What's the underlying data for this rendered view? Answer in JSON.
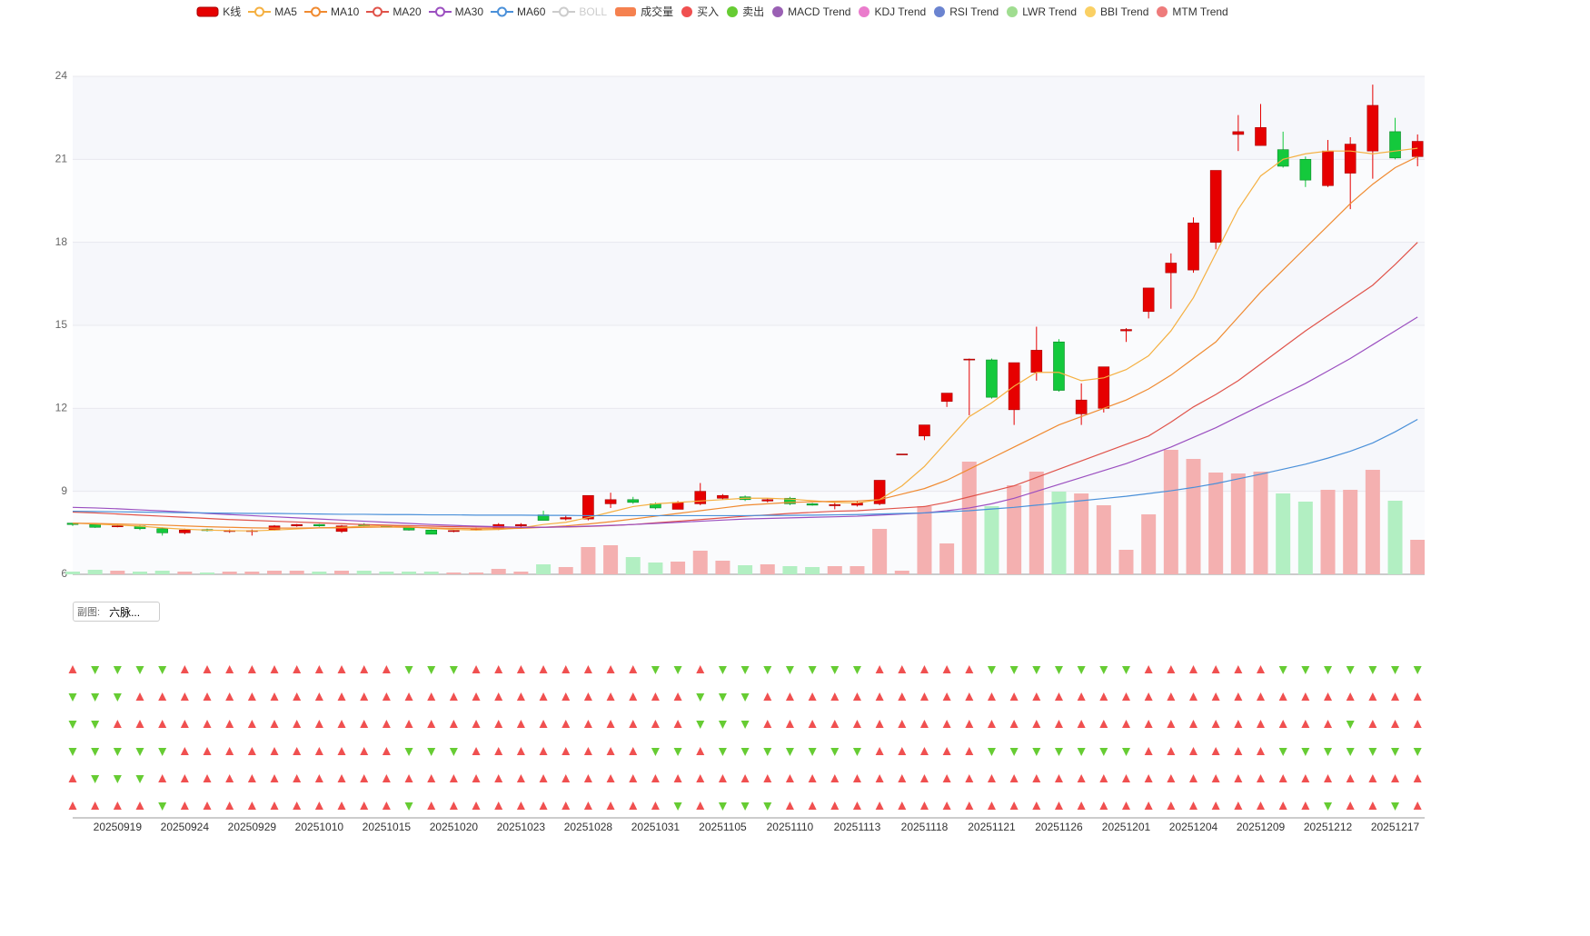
{
  "chart_data": {
    "type": "candlestick",
    "candle_name": "K线",
    "up_color": "#e60000",
    "up_border": "#a80000",
    "down_color": "#14c93c",
    "down_border": "#0a8a28",
    "categories": [
      null,
      null,
      "20250919",
      null,
      null,
      "20250924",
      null,
      null,
      "20250929",
      null,
      null,
      "20251010",
      null,
      null,
      "20251015",
      null,
      null,
      "20251020",
      null,
      null,
      "20251023",
      null,
      null,
      "20251028",
      null,
      null,
      "20251031",
      null,
      null,
      "20251105",
      null,
      null,
      "20251110",
      null,
      null,
      "20251113",
      null,
      null,
      "20251118",
      null,
      null,
      "20251121",
      null,
      null,
      "20251126",
      null,
      null,
      "20251201",
      null,
      null,
      "20251204",
      null,
      null,
      "20251209",
      null,
      null,
      "20251212",
      null,
      null,
      "20251217",
      null
    ],
    "ohlc": [
      [
        7.85,
        7.8,
        7.75,
        7.85
      ],
      [
        7.8,
        7.7,
        7.68,
        7.82
      ],
      [
        7.72,
        7.75,
        7.7,
        7.8
      ],
      [
        7.75,
        7.65,
        7.6,
        7.78
      ],
      [
        7.65,
        7.5,
        7.4,
        7.7
      ],
      [
        7.5,
        7.6,
        7.45,
        7.65
      ],
      [
        7.62,
        7.58,
        7.55,
        7.65
      ],
      [
        7.55,
        7.58,
        7.5,
        7.62
      ],
      [
        7.55,
        7.58,
        7.4,
        7.62
      ],
      [
        7.6,
        7.75,
        7.58,
        7.78
      ],
      [
        7.75,
        7.8,
        7.72,
        7.82
      ],
      [
        7.8,
        7.75,
        7.72,
        7.82
      ],
      [
        7.55,
        7.75,
        7.5,
        7.78
      ],
      [
        7.8,
        7.75,
        7.7,
        7.85
      ],
      [
        7.75,
        7.72,
        7.7,
        7.78
      ],
      [
        7.7,
        7.6,
        7.58,
        7.72
      ],
      [
        7.6,
        7.45,
        7.45,
        7.62
      ],
      [
        7.55,
        7.58,
        7.52,
        7.6
      ],
      [
        7.6,
        7.65,
        7.58,
        7.68
      ],
      [
        7.65,
        7.8,
        7.6,
        7.85
      ],
      [
        7.75,
        7.8,
        7.7,
        7.85
      ],
      [
        8.15,
        7.95,
        7.95,
        8.3
      ],
      [
        8.0,
        8.05,
        7.95,
        8.15
      ],
      [
        8.0,
        8.85,
        7.95,
        8.85
      ],
      [
        8.55,
        8.7,
        8.4,
        8.95
      ],
      [
        8.7,
        8.6,
        8.55,
        8.8
      ],
      [
        8.55,
        8.4,
        8.35,
        8.6
      ],
      [
        8.35,
        8.6,
        8.35,
        8.65
      ],
      [
        8.55,
        9.0,
        8.5,
        9.3
      ],
      [
        8.75,
        8.85,
        8.7,
        8.9
      ],
      [
        8.8,
        8.7,
        8.65,
        8.85
      ],
      [
        8.65,
        8.7,
        8.6,
        8.75
      ],
      [
        8.75,
        8.55,
        8.5,
        8.8
      ],
      [
        8.55,
        8.5,
        8.48,
        8.58
      ],
      [
        8.48,
        8.52,
        8.35,
        8.6
      ],
      [
        8.5,
        8.58,
        8.45,
        8.65
      ],
      [
        8.55,
        9.4,
        8.5,
        9.4
      ],
      [
        10.35,
        10.35,
        10.35,
        10.35
      ],
      [
        11.0,
        11.4,
        10.85,
        11.4
      ],
      [
        12.25,
        12.55,
        12.05,
        12.55
      ],
      [
        13.75,
        13.78,
        11.75,
        13.8
      ],
      [
        13.75,
        12.4,
        12.35,
        13.8
      ],
      [
        11.95,
        13.65,
        11.4,
        13.65
      ],
      [
        13.3,
        14.1,
        13.0,
        14.95
      ],
      [
        14.4,
        12.65,
        12.6,
        14.5
      ],
      [
        11.8,
        12.3,
        11.4,
        12.9
      ],
      [
        12.0,
        13.5,
        11.85,
        13.5
      ],
      [
        14.8,
        14.85,
        14.4,
        14.9
      ],
      [
        15.5,
        16.35,
        15.25,
        16.35
      ],
      [
        16.9,
        17.25,
        15.6,
        17.6
      ],
      [
        17.0,
        18.7,
        16.9,
        18.9
      ],
      [
        18.0,
        20.6,
        17.75,
        20.6
      ],
      [
        21.9,
        22.0,
        21.3,
        22.6
      ],
      [
        21.5,
        22.15,
        21.5,
        23.0
      ],
      [
        21.35,
        20.75,
        20.7,
        22.0
      ],
      [
        21.0,
        20.25,
        20.0,
        21.1
      ],
      [
        20.05,
        21.3,
        20.0,
        21.7
      ],
      [
        20.5,
        21.55,
        19.2,
        21.8
      ],
      [
        21.3,
        22.95,
        20.3,
        23.7
      ],
      [
        22.0,
        21.05,
        21.0,
        22.5
      ],
      [
        21.1,
        21.65,
        20.75,
        21.9
      ]
    ],
    "volume_name": "成交量",
    "volume_color": "#f5814f",
    "volume_up_color": "#f4b0b0",
    "volume_down_color": "#b2efc2",
    "volume": [
      3,
      5,
      4,
      3,
      4,
      3,
      2,
      3,
      3,
      4,
      4,
      3,
      4,
      4,
      3,
      3,
      3,
      2,
      2,
      6,
      3,
      11,
      8,
      30,
      32,
      19,
      13,
      14,
      26,
      15,
      10,
      11,
      9,
      8,
      9,
      9,
      50,
      4,
      75,
      34,
      124,
      75,
      98,
      113,
      91,
      89,
      76,
      27,
      66,
      137,
      127,
      112,
      111,
      113,
      89,
      80,
      93,
      93,
      115,
      81,
      38
    ],
    "series": [
      {
        "name": "MA5",
        "color": "#f5b041",
        "values": [
          7.85,
          7.82,
          7.78,
          7.74,
          7.68,
          7.63,
          7.6,
          7.58,
          7.57,
          7.6,
          7.64,
          7.68,
          7.7,
          7.74,
          7.76,
          7.72,
          7.66,
          7.62,
          7.6,
          7.62,
          7.68,
          7.8,
          7.88,
          8.05,
          8.25,
          8.45,
          8.55,
          8.6,
          8.65,
          8.7,
          8.75,
          8.75,
          8.72,
          8.66,
          8.6,
          8.58,
          8.7,
          9.2,
          9.9,
          10.8,
          11.7,
          12.2,
          12.8,
          13.3,
          13.3,
          13.0,
          13.1,
          13.4,
          13.9,
          14.8,
          16.0,
          17.6,
          19.2,
          20.4,
          21.0,
          21.2,
          21.3,
          21.3,
          21.2,
          21.3,
          21.4
        ]
      },
      {
        "name": "MA10",
        "color": "#f08a30",
        "values": [
          7.85,
          7.84,
          7.82,
          7.8,
          7.78,
          7.75,
          7.72,
          7.7,
          7.68,
          7.67,
          7.67,
          7.68,
          7.68,
          7.7,
          7.71,
          7.7,
          7.68,
          7.66,
          7.65,
          7.65,
          7.66,
          7.7,
          7.75,
          7.82,
          7.9,
          8.0,
          8.1,
          8.2,
          8.3,
          8.4,
          8.5,
          8.55,
          8.6,
          8.62,
          8.64,
          8.65,
          8.7,
          8.9,
          9.1,
          9.4,
          9.8,
          10.2,
          10.6,
          11.0,
          11.4,
          11.7,
          12.0,
          12.3,
          12.7,
          13.2,
          13.8,
          14.4,
          15.3,
          16.2,
          17.0,
          17.8,
          18.6,
          19.4,
          20.1,
          20.7,
          21.1
        ]
      },
      {
        "name": "MA20",
        "color": "#e0534a",
        "values": [
          8.25,
          8.22,
          8.18,
          8.14,
          8.1,
          8.06,
          8.02,
          7.98,
          7.95,
          7.92,
          7.89,
          7.86,
          7.83,
          7.8,
          7.78,
          7.76,
          7.74,
          7.72,
          7.71,
          7.7,
          7.7,
          7.7,
          7.71,
          7.73,
          7.76,
          7.8,
          7.86,
          7.92,
          7.98,
          8.04,
          8.1,
          8.15,
          8.2,
          8.24,
          8.28,
          8.3,
          8.35,
          8.4,
          8.45,
          8.6,
          8.8,
          9.0,
          9.2,
          9.5,
          9.8,
          10.1,
          10.4,
          10.7,
          11.0,
          11.5,
          12.05,
          12.5,
          13.0,
          13.6,
          14.2,
          14.8,
          15.35,
          15.9,
          16.45,
          17.2,
          18.0
        ]
      },
      {
        "name": "MA30",
        "color": "#9b4fc0",
        "values": [
          8.42,
          8.4,
          8.37,
          8.33,
          8.29,
          8.25,
          8.2,
          8.16,
          8.12,
          8.08,
          8.04,
          8.0,
          7.96,
          7.92,
          7.88,
          7.84,
          7.8,
          7.77,
          7.74,
          7.72,
          7.7,
          7.7,
          7.72,
          7.74,
          7.77,
          7.8,
          7.84,
          7.88,
          7.92,
          7.96,
          8.0,
          8.02,
          8.04,
          8.06,
          8.08,
          8.1,
          8.14,
          8.18,
          8.22,
          8.3,
          8.4,
          8.55,
          8.75,
          9.0,
          9.25,
          9.5,
          9.75,
          10.0,
          10.3,
          10.6,
          10.95,
          11.3,
          11.7,
          12.1,
          12.5,
          12.9,
          13.35,
          13.8,
          14.3,
          14.8,
          15.3
        ]
      },
      {
        "name": "MA60",
        "color": "#4a90d9",
        "values": [
          8.28,
          8.27,
          8.26,
          8.25,
          8.24,
          8.23,
          8.22,
          8.21,
          8.2,
          8.2,
          8.19,
          8.18,
          8.17,
          8.17,
          8.16,
          8.16,
          8.15,
          8.15,
          8.14,
          8.14,
          8.14,
          8.13,
          8.13,
          8.12,
          8.12,
          8.12,
          8.12,
          8.12,
          8.12,
          8.12,
          8.12,
          8.13,
          8.13,
          8.14,
          8.15,
          8.16,
          8.18,
          8.2,
          8.22,
          8.26,
          8.3,
          8.36,
          8.42,
          8.5,
          8.58,
          8.66,
          8.74,
          8.82,
          8.92,
          9.02,
          9.14,
          9.28,
          9.45,
          9.62,
          9.8,
          9.98,
          10.2,
          10.45,
          10.75,
          11.15,
          11.6
        ]
      }
    ],
    "boll": {
      "name": "BOLL",
      "color": "#cccccc"
    },
    "buy_name": "买入",
    "buy_color": "#f05050",
    "sell_name": "卖出",
    "sell_color": "#66cc33",
    "signals": [
      {
        "name": "MACD Trend",
        "color": "#9a60b4",
        "values": [
          1,
          -1,
          -1,
          -1,
          -1,
          1,
          1,
          1,
          1,
          1,
          1,
          1,
          1,
          1,
          1,
          -1,
          -1,
          -1,
          1,
          1,
          1,
          1,
          1,
          1,
          1,
          1,
          -1,
          -1,
          1,
          -1,
          -1,
          -1,
          -1,
          -1,
          -1,
          -1,
          1,
          1,
          1,
          1,
          1,
          -1,
          -1,
          -1,
          -1,
          -1,
          -1,
          -1,
          1,
          1,
          1,
          1,
          1,
          1,
          -1,
          -1,
          -1,
          -1,
          -1,
          -1,
          -1
        ]
      },
      {
        "name": "KDJ Trend",
        "color": "#ea7ccc",
        "values": [
          -1,
          -1,
          -1,
          1,
          1,
          1,
          1,
          1,
          1,
          1,
          1,
          1,
          1,
          1,
          1,
          1,
          1,
          1,
          1,
          1,
          1,
          1,
          1,
          1,
          1,
          1,
          1,
          1,
          -1,
          -1,
          -1,
          1,
          1,
          1,
          1,
          1,
          1,
          1,
          1,
          1,
          1,
          1,
          1,
          1,
          1,
          1,
          1,
          1,
          1,
          1,
          1,
          1,
          1,
          1,
          1,
          1,
          1,
          1,
          1,
          1,
          1
        ]
      },
      {
        "name": "RSI Trend",
        "color": "#6b84d0",
        "values": [
          -1,
          -1,
          1,
          1,
          1,
          1,
          1,
          1,
          1,
          1,
          1,
          1,
          1,
          1,
          1,
          1,
          1,
          1,
          1,
          1,
          1,
          1,
          1,
          1,
          1,
          1,
          1,
          1,
          -1,
          -1,
          -1,
          1,
          1,
          1,
          1,
          1,
          1,
          1,
          1,
          1,
          1,
          1,
          1,
          1,
          1,
          1,
          1,
          1,
          1,
          1,
          1,
          1,
          1,
          1,
          1,
          1,
          1,
          -1,
          1,
          1,
          1
        ]
      },
      {
        "name": "LWR Trend",
        "color": "#a0dd90",
        "values": [
          -1,
          -1,
          -1,
          -1,
          -1,
          1,
          1,
          1,
          1,
          1,
          1,
          1,
          1,
          1,
          1,
          -1,
          -1,
          -1,
          1,
          1,
          1,
          1,
          1,
          1,
          1,
          1,
          -1,
          -1,
          1,
          -1,
          -1,
          -1,
          -1,
          -1,
          -1,
          -1,
          1,
          1,
          1,
          1,
          1,
          -1,
          -1,
          -1,
          -1,
          -1,
          -1,
          -1,
          1,
          1,
          1,
          1,
          1,
          1,
          -1,
          -1,
          -1,
          -1,
          -1,
          -1,
          -1
        ]
      },
      {
        "name": "BBI Trend",
        "color": "#fad064",
        "values": [
          1,
          -1,
          -1,
          -1,
          1,
          1,
          1,
          1,
          1,
          1,
          1,
          1,
          1,
          1,
          1,
          1,
          1,
          1,
          1,
          1,
          1,
          1,
          1,
          1,
          1,
          1,
          1,
          1,
          1,
          1,
          1,
          1,
          1,
          1,
          1,
          1,
          1,
          1,
          1,
          1,
          1,
          1,
          1,
          1,
          1,
          1,
          1,
          1,
          1,
          1,
          1,
          1,
          1,
          1,
          1,
          1,
          1,
          1,
          1,
          1,
          1
        ]
      },
      {
        "name": "MTM Trend",
        "color": "#ee7b7b",
        "values": [
          1,
          1,
          1,
          1,
          -1,
          1,
          1,
          1,
          1,
          1,
          1,
          1,
          1,
          1,
          1,
          -1,
          1,
          1,
          1,
          1,
          1,
          1,
          1,
          1,
          1,
          1,
          1,
          -1,
          1,
          -1,
          -1,
          -1,
          1,
          1,
          1,
          1,
          1,
          1,
          1,
          1,
          1,
          1,
          1,
          1,
          1,
          1,
          1,
          1,
          1,
          1,
          1,
          1,
          1,
          1,
          1,
          1,
          -1,
          1,
          1,
          -1,
          1
        ]
      }
    ],
    "ylim": [
      6,
      24
    ],
    "yticks": [
      6,
      9,
      12,
      15,
      18,
      21,
      24
    ],
    "grid": true
  },
  "controls": {
    "subchart_label": "副图:",
    "subchart_value": "六脉..."
  }
}
